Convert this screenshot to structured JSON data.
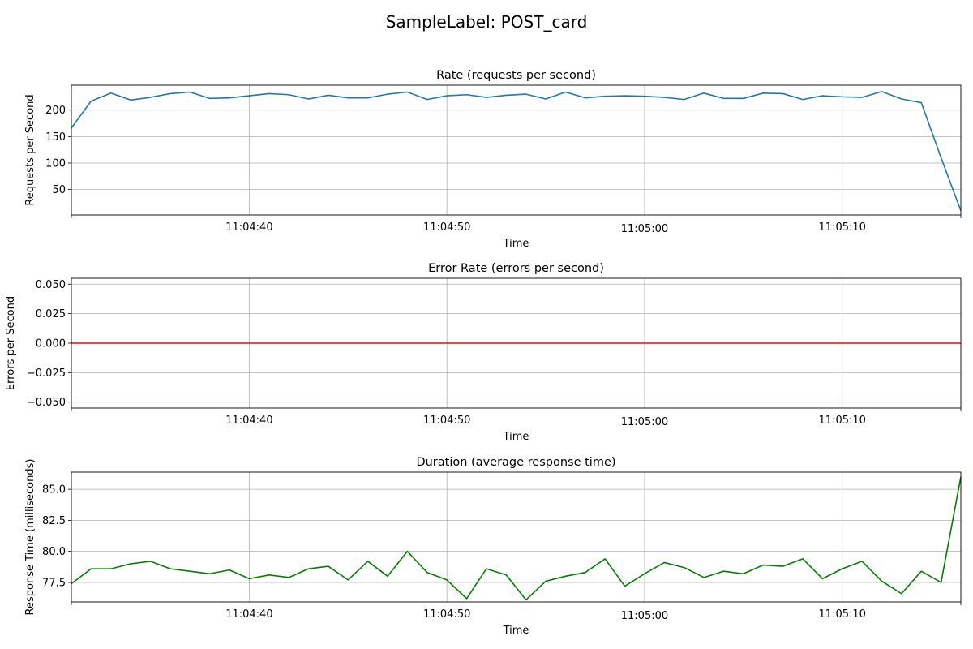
{
  "figure": {
    "suptitle": "SampleLabel: POST_card"
  },
  "chart_data": [
    {
      "type": "line",
      "title": "Rate (requests per second)",
      "xlabel": "Time",
      "ylabel": "Requests per Second",
      "color": "#1f77b4",
      "grid": true,
      "x_start": "11:04:31",
      "x_step_seconds": 1,
      "xlim": [
        "11:04:31",
        "11:05:16"
      ],
      "ylim": [
        2,
        247
      ],
      "x_tick_labels": [
        "11:04:40",
        "11:04:50",
        "11:05:00",
        "11:05:10"
      ],
      "y_ticks": [
        50,
        100,
        150,
        200
      ],
      "y_tick_labels": [
        "50",
        "100",
        "150",
        "200"
      ],
      "series": [
        {
          "values": [
            166,
            217,
            232,
            219,
            224,
            231,
            234,
            222,
            223,
            227,
            231,
            229,
            221,
            228,
            223,
            223,
            230,
            234,
            220,
            227,
            229,
            224,
            228,
            230,
            221,
            234,
            223,
            226,
            227,
            226,
            224,
            220,
            232,
            222,
            222,
            232,
            231,
            220,
            227,
            225,
            224,
            235,
            221,
            214,
            110,
            10
          ]
        }
      ]
    },
    {
      "type": "line",
      "title": "Error Rate (errors per second)",
      "xlabel": "Time",
      "ylabel": "Errors per Second",
      "color": "#ff0000",
      "grid": true,
      "x_start": "11:04:31",
      "x_step_seconds": 1,
      "xlim": [
        "11:04:31",
        "11:05:16"
      ],
      "ylim": [
        -0.055,
        0.055
      ],
      "x_tick_labels": [
        "11:04:40",
        "11:04:50",
        "11:05:00",
        "11:05:10"
      ],
      "y_ticks": [
        -0.05,
        -0.025,
        0,
        0.025,
        0.05
      ],
      "y_tick_labels": [
        "−0.050",
        "−0.025",
        "0.000",
        "0.025",
        "0.050"
      ],
      "series": [
        {
          "values": [
            0,
            0,
            0,
            0,
            0,
            0,
            0,
            0,
            0,
            0,
            0,
            0,
            0,
            0,
            0,
            0,
            0,
            0,
            0,
            0,
            0,
            0,
            0,
            0,
            0,
            0,
            0,
            0,
            0,
            0,
            0,
            0,
            0,
            0,
            0,
            0,
            0,
            0,
            0,
            0,
            0,
            0,
            0,
            0,
            0,
            0
          ]
        }
      ]
    },
    {
      "type": "line",
      "title": "Duration (average response time)",
      "xlabel": "Time",
      "ylabel": "Response Time (milliseconds)",
      "color": "#008000",
      "grid": true,
      "x_start": "11:04:31",
      "x_step_seconds": 1,
      "xlim": [
        "11:04:31",
        "11:05:16"
      ],
      "ylim": [
        75.93,
        86.38
      ],
      "x_tick_labels": [
        "11:04:40",
        "11:04:50",
        "11:05:00",
        "11:05:10"
      ],
      "y_ticks": [
        77.5,
        80.0,
        82.5,
        85.0
      ],
      "y_tick_labels": [
        "77.5",
        "80.0",
        "82.5",
        "85.0"
      ],
      "series": [
        {
          "values": [
            77.4,
            78.6,
            78.6,
            79.0,
            79.2,
            78.6,
            78.4,
            78.2,
            78.5,
            77.8,
            78.1,
            77.9,
            78.6,
            78.8,
            77.7,
            79.2,
            78.0,
            80.0,
            78.3,
            77.7,
            76.2,
            78.6,
            78.1,
            76.1,
            77.6,
            78.0,
            78.3,
            79.4,
            77.2,
            78.2,
            79.1,
            78.7,
            77.9,
            78.4,
            78.2,
            78.9,
            78.8,
            79.4,
            77.8,
            78.6,
            79.2,
            77.6,
            76.6,
            78.4,
            77.5,
            86.0
          ]
        }
      ]
    }
  ]
}
